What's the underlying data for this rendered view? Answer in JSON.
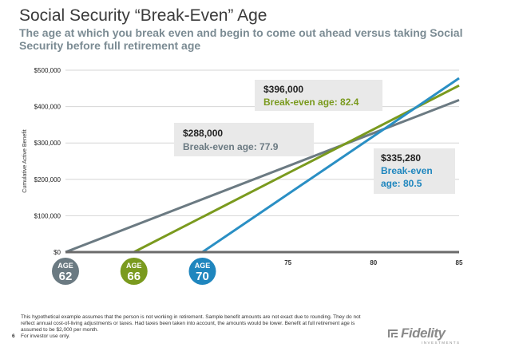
{
  "header": {
    "title": "Social Security “Break-Even” Age",
    "subtitle": "The age at which you break even and begin to come out ahead versus taking Social Security before full retirement age"
  },
  "chart_data": {
    "type": "line",
    "ylabel": "Cumulative Active Benefit",
    "xlim": [
      62,
      85
    ],
    "ylim": [
      0,
      500000
    ],
    "y_ticks": [
      {
        "value": 0,
        "label": "$0"
      },
      {
        "value": 100000,
        "label": "$100,000"
      },
      {
        "value": 200000,
        "label": "$200,000"
      },
      {
        "value": 300000,
        "label": "$300,000"
      },
      {
        "value": 400000,
        "label": "$400,000"
      },
      {
        "value": 500000,
        "label": "$500,000"
      }
    ],
    "x_ticks": [
      {
        "value": 75,
        "label": "75"
      },
      {
        "value": 80,
        "label": "80"
      },
      {
        "value": 85,
        "label": "85"
      }
    ],
    "start_markers": [
      {
        "age": 62,
        "top": "AGE",
        "bottom": "62",
        "color": "#6b7a82"
      },
      {
        "age": 66,
        "top": "AGE",
        "bottom": "66",
        "color": "#7a9a1e"
      },
      {
        "age": 70,
        "top": "AGE",
        "bottom": "70",
        "color": "#1f86be"
      }
    ],
    "series": [
      {
        "name": "Age 62",
        "color": "#6b7a82",
        "x": [
          62,
          85
        ],
        "y": [
          0,
          418000
        ]
      },
      {
        "name": "Age 66",
        "color": "#7a9a1e",
        "x": [
          66,
          85
        ],
        "y": [
          0,
          458000
        ]
      },
      {
        "name": "Age 70",
        "color": "#2a8fc4",
        "x": [
          70,
          85
        ],
        "y": [
          0,
          478000
        ]
      }
    ],
    "annotations": [
      {
        "amount": "$396,000",
        "text": "Break-even age: 82.4",
        "color": "#7a9a1e"
      },
      {
        "amount": "$288,000",
        "text": "Break-even age: 77.9",
        "color": "#6b7a82"
      },
      {
        "amount": "$335,280",
        "text_line1": "Break-even",
        "text_line2": "age: 80.5",
        "color": "#1f86be"
      }
    ],
    "grid": true
  },
  "footer": {
    "disclaimer": "This hypothetical example assumes that the person is not working in retirement. Sample benefit amounts are not exact due to rounding. They do not reflect annual cost-of-living adjustments or taxes. Had taxes been taken into account, the amounts would be lower. Benefit at full retirement age is assumed to be $2,000 per month.",
    "page_number": "6",
    "investor_note": "For investor use only.",
    "logo": "Fidelity",
    "logo_sub": "INVESTMENTS"
  }
}
